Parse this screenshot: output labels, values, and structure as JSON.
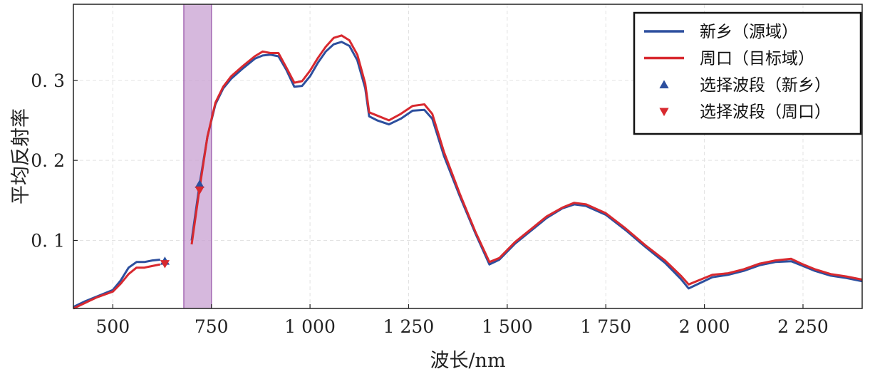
{
  "chart_data": {
    "type": "line",
    "xlabel": "波长/nm",
    "ylabel": "平均反射率",
    "xlim": [
      400,
      2400
    ],
    "ylim": [
      0.015,
      0.395
    ],
    "x_ticks": [
      {
        "value": 500,
        "label": "500"
      },
      {
        "value": 750,
        "label": "750"
      },
      {
        "value": 1000,
        "label": "1 000"
      },
      {
        "value": 1250,
        "label": "1 250"
      },
      {
        "value": 1500,
        "label": "1 500"
      },
      {
        "value": 1750,
        "label": "1 750"
      },
      {
        "value": 2000,
        "label": "2 000"
      },
      {
        "value": 2250,
        "label": "2 250"
      }
    ],
    "y_ticks": [
      {
        "value": 0.1,
        "label": "0. 1"
      },
      {
        "value": 0.2,
        "label": "0. 2"
      },
      {
        "value": 0.3,
        "label": "0. 3"
      }
    ],
    "grid": true,
    "legend_position": "top-right",
    "highlight_band": {
      "from": 680,
      "to": 750,
      "color": "#c8a0d2"
    },
    "series": [
      {
        "name": "新乡（源域）",
        "color": "#2d4f9e",
        "points": [
          [
            400,
            0.017
          ],
          [
            430,
            0.024
          ],
          [
            460,
            0.03
          ],
          [
            500,
            0.038
          ],
          [
            520,
            0.05
          ],
          [
            540,
            0.066
          ],
          [
            560,
            0.073
          ],
          [
            580,
            0.073
          ],
          [
            600,
            0.075
          ],
          [
            620,
            0.076
          ],
          [
            700,
            0.1
          ],
          [
            720,
            0.17
          ],
          [
            740,
            0.23
          ],
          [
            760,
            0.27
          ],
          [
            780,
            0.29
          ],
          [
            800,
            0.302
          ],
          [
            830,
            0.315
          ],
          [
            860,
            0.327
          ],
          [
            880,
            0.331
          ],
          [
            900,
            0.332
          ],
          [
            920,
            0.33
          ],
          [
            940,
            0.313
          ],
          [
            960,
            0.292
          ],
          [
            980,
            0.293
          ],
          [
            1000,
            0.305
          ],
          [
            1020,
            0.322
          ],
          [
            1040,
            0.336
          ],
          [
            1060,
            0.345
          ],
          [
            1080,
            0.348
          ],
          [
            1100,
            0.343
          ],
          [
            1120,
            0.325
          ],
          [
            1140,
            0.29
          ],
          [
            1150,
            0.255
          ],
          [
            1170,
            0.25
          ],
          [
            1200,
            0.245
          ],
          [
            1230,
            0.252
          ],
          [
            1260,
            0.262
          ],
          [
            1290,
            0.263
          ],
          [
            1310,
            0.252
          ],
          [
            1340,
            0.205
          ],
          [
            1380,
            0.155
          ],
          [
            1420,
            0.108
          ],
          [
            1455,
            0.07
          ],
          [
            1480,
            0.076
          ],
          [
            1520,
            0.096
          ],
          [
            1560,
            0.112
          ],
          [
            1600,
            0.128
          ],
          [
            1640,
            0.14
          ],
          [
            1670,
            0.145
          ],
          [
            1700,
            0.143
          ],
          [
            1750,
            0.132
          ],
          [
            1800,
            0.113
          ],
          [
            1850,
            0.092
          ],
          [
            1900,
            0.072
          ],
          [
            1940,
            0.052
          ],
          [
            1960,
            0.04
          ],
          [
            1990,
            0.047
          ],
          [
            2020,
            0.054
          ],
          [
            2060,
            0.057
          ],
          [
            2100,
            0.062
          ],
          [
            2140,
            0.069
          ],
          [
            2180,
            0.073
          ],
          [
            2220,
            0.074
          ],
          [
            2250,
            0.068
          ],
          [
            2280,
            0.062
          ],
          [
            2320,
            0.056
          ],
          [
            2360,
            0.053
          ],
          [
            2400,
            0.049
          ]
        ]
      },
      {
        "name": "周口（目标域）",
        "color": "#d8292f",
        "points": [
          [
            400,
            0.015
          ],
          [
            430,
            0.022
          ],
          [
            460,
            0.029
          ],
          [
            500,
            0.036
          ],
          [
            520,
            0.046
          ],
          [
            540,
            0.058
          ],
          [
            560,
            0.066
          ],
          [
            580,
            0.066
          ],
          [
            600,
            0.068
          ],
          [
            620,
            0.07
          ],
          [
            700,
            0.095
          ],
          [
            720,
            0.165
          ],
          [
            740,
            0.23
          ],
          [
            760,
            0.272
          ],
          [
            780,
            0.292
          ],
          [
            800,
            0.305
          ],
          [
            830,
            0.318
          ],
          [
            860,
            0.33
          ],
          [
            880,
            0.336
          ],
          [
            900,
            0.334
          ],
          [
            920,
            0.334
          ],
          [
            940,
            0.316
          ],
          [
            960,
            0.297
          ],
          [
            980,
            0.299
          ],
          [
            1000,
            0.312
          ],
          [
            1020,
            0.328
          ],
          [
            1040,
            0.342
          ],
          [
            1060,
            0.353
          ],
          [
            1080,
            0.356
          ],
          [
            1100,
            0.35
          ],
          [
            1120,
            0.332
          ],
          [
            1140,
            0.296
          ],
          [
            1150,
            0.26
          ],
          [
            1170,
            0.256
          ],
          [
            1200,
            0.25
          ],
          [
            1230,
            0.258
          ],
          [
            1260,
            0.268
          ],
          [
            1290,
            0.27
          ],
          [
            1310,
            0.258
          ],
          [
            1340,
            0.21
          ],
          [
            1380,
            0.158
          ],
          [
            1420,
            0.11
          ],
          [
            1455,
            0.073
          ],
          [
            1480,
            0.078
          ],
          [
            1520,
            0.098
          ],
          [
            1560,
            0.114
          ],
          [
            1600,
            0.13
          ],
          [
            1640,
            0.141
          ],
          [
            1670,
            0.147
          ],
          [
            1700,
            0.145
          ],
          [
            1750,
            0.134
          ],
          [
            1800,
            0.115
          ],
          [
            1850,
            0.094
          ],
          [
            1900,
            0.075
          ],
          [
            1940,
            0.056
          ],
          [
            1960,
            0.045
          ],
          [
            1990,
            0.051
          ],
          [
            2020,
            0.057
          ],
          [
            2060,
            0.059
          ],
          [
            2100,
            0.064
          ],
          [
            2140,
            0.071
          ],
          [
            2180,
            0.075
          ],
          [
            2220,
            0.077
          ],
          [
            2250,
            0.07
          ],
          [
            2280,
            0.064
          ],
          [
            2320,
            0.058
          ],
          [
            2360,
            0.055
          ],
          [
            2400,
            0.051
          ]
        ]
      }
    ],
    "markers": [
      {
        "name": "选择波段（新乡）",
        "shape": "triangle-up",
        "color": "#2d4f9e",
        "points": [
          [
            632,
            0.074
          ],
          [
            720,
            0.17
          ]
        ]
      },
      {
        "name": "选择波段（周口）",
        "shape": "triangle-down",
        "color": "#d8292f",
        "points": [
          [
            632,
            0.071
          ],
          [
            720,
            0.163
          ]
        ]
      }
    ],
    "legend": [
      {
        "label": "新乡（源域）",
        "kind": "line",
        "color": "#2d4f9e"
      },
      {
        "label": "周口（目标域）",
        "kind": "line",
        "color": "#d8292f"
      },
      {
        "label": "选择波段（新乡）",
        "kind": "triangle-up",
        "color": "#2d4f9e"
      },
      {
        "label": "选择波段（周口）",
        "kind": "triangle-down",
        "color": "#d8292f"
      }
    ]
  }
}
